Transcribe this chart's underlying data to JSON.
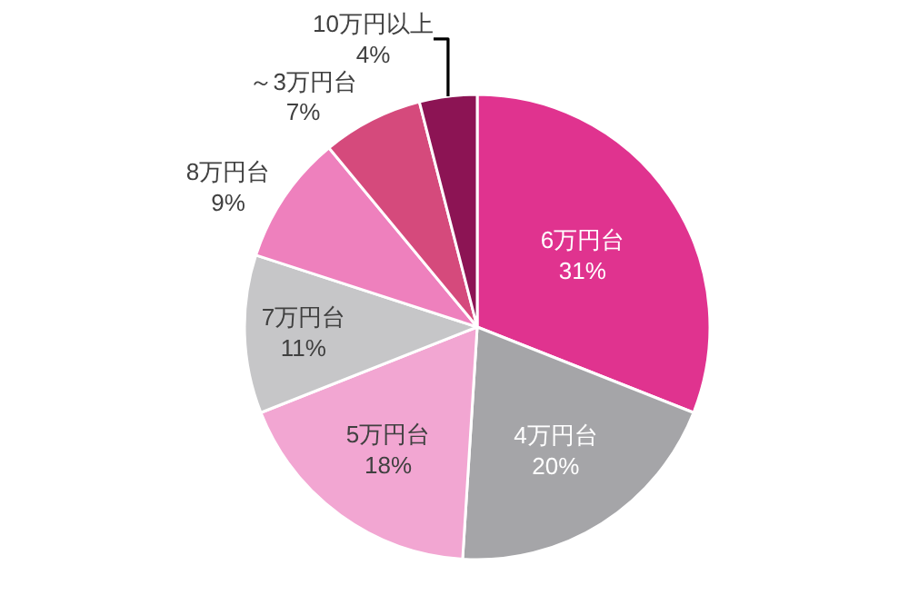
{
  "chart_data": {
    "type": "pie",
    "categories": [
      "6万円台",
      "4万円台",
      "5万円台",
      "7万円台",
      "8万円台",
      "～3万円台",
      "10万円以上"
    ],
    "values": [
      31,
      20,
      18,
      11,
      9,
      7,
      4
    ],
    "value_labels": [
      "31%",
      "20%",
      "18%",
      "11%",
      "9%",
      "7%",
      "4%"
    ],
    "colors": [
      "#e0338f",
      "#a5a5a8",
      "#f2a6d2",
      "#c6c6c8",
      "#ee80bd",
      "#d54a7c",
      "#8c1454"
    ],
    "legend": false
  }
}
